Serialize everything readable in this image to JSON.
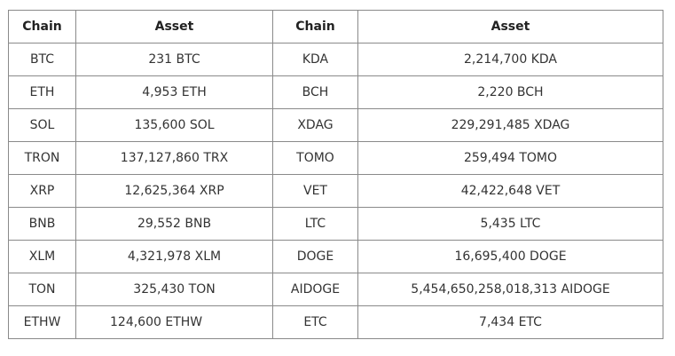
{
  "table": {
    "headers": [
      "Chain",
      "Asset",
      "Chain",
      "Asset"
    ],
    "rows": [
      [
        "BTC",
        "231 BTC",
        "KDA",
        "2,214,700 KDA"
      ],
      [
        "ETH",
        "4,953 ETH",
        "BCH",
        "2,220 BCH"
      ],
      [
        "SOL",
        "135,600 SOL",
        "XDAG",
        "229,291,485 XDAG"
      ],
      [
        "TRON",
        "137,127,860 TRX",
        "TOMO",
        "259,494 TOMO"
      ],
      [
        "XRP",
        "12,625,364 XRP",
        "VET",
        "42,422,648 VET"
      ],
      [
        "BNB",
        "29,552 BNB",
        "LTC",
        "5,435 LTC"
      ],
      [
        "XLM",
        "4,321,978 XLM",
        "DOGE",
        "16,695,400 DOGE"
      ],
      [
        "TON",
        "325,430 TON",
        "AIDOGE",
        "5,454,650,258,018,313 AIDOGE"
      ],
      [
        "ETHW",
        "124,600 ETHW",
        "ETC",
        "7,434 ETC"
      ]
    ]
  }
}
